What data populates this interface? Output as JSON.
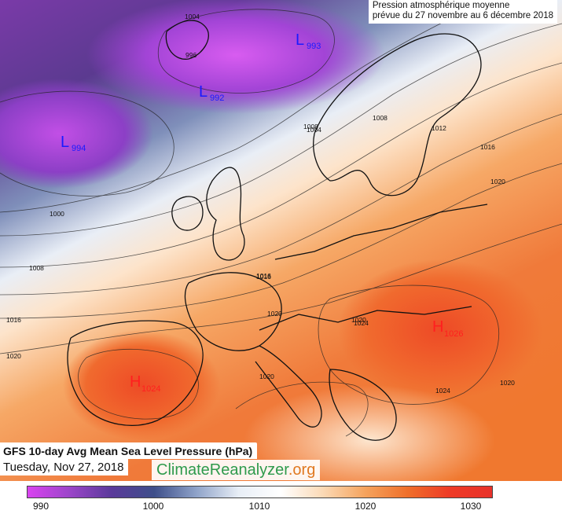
{
  "caption": {
    "line1": "Pression atmosphérique moyenne",
    "line2": "prévue du 27 novembre au 6 décembre 2018"
  },
  "title": "GFS 10-day Avg Mean Sea Level Pressure (hPa)",
  "date": "Tuesday, Nov 27, 2018",
  "brand": {
    "main": "ClimateReanalyzer",
    "suffix": ".org"
  },
  "colorbar": {
    "ticks": [
      "990",
      "1000",
      "1010",
      "1020",
      "1030"
    ],
    "colors": [
      "#d944f0",
      "#9b45c9",
      "#5a3a9a",
      "#3e4f8a",
      "#8fa3c9",
      "#e8eef6",
      "#ffffff",
      "#fbd9b5",
      "#f5a35d",
      "#ef6f2a",
      "#ee3a26",
      "#e8322a"
    ]
  },
  "pressure_centers": [
    {
      "type": "L",
      "value": "993"
    },
    {
      "type": "L",
      "value": "992"
    },
    {
      "type": "L",
      "value": "994"
    },
    {
      "type": "H",
      "value": "1026"
    },
    {
      "type": "H",
      "value": "1024"
    }
  ],
  "isobar_labels": [
    "1004",
    "996",
    "1008",
    "1012",
    "1016",
    "1020",
    "1000",
    "1008",
    "1016",
    "1020",
    "1004",
    "1016",
    "1020",
    "1020",
    "1024",
    "1020",
    "1024",
    "1020",
    "1008",
    "1016"
  ]
}
